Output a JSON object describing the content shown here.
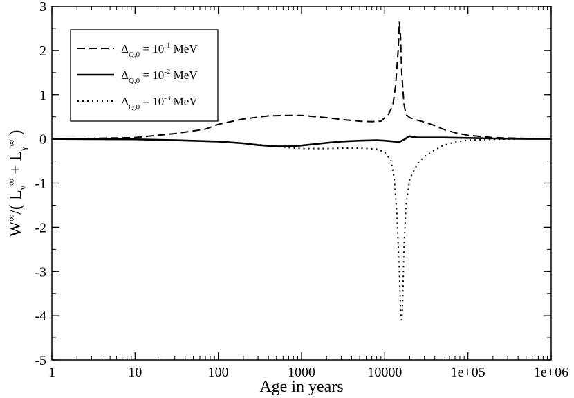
{
  "chart_data": {
    "type": "line",
    "xscale": "log",
    "xlim": [
      1,
      1000000
    ],
    "ylim": [
      -5,
      3
    ],
    "xlabel": "Age in years",
    "ylabel": "W^∞/( L_ν^∞ + L_γ^∞ )",
    "xticks": [
      {
        "value": 1,
        "label": "1"
      },
      {
        "value": 10,
        "label": "10"
      },
      {
        "value": 100,
        "label": "100"
      },
      {
        "value": 1000,
        "label": "1000"
      },
      {
        "value": 10000,
        "label": "10000"
      },
      {
        "value": 100000,
        "label": "1e+05"
      },
      {
        "value": 1000000,
        "label": "1e+06"
      }
    ],
    "yticks": [
      {
        "value": 3,
        "label": "3"
      },
      {
        "value": 2,
        "label": "2"
      },
      {
        "value": 1,
        "label": "1"
      },
      {
        "value": 0,
        "label": "0"
      },
      {
        "value": -1,
        "label": "-1"
      },
      {
        "value": -2,
        "label": "-2"
      },
      {
        "value": -3,
        "label": "-3"
      },
      {
        "value": -4,
        "label": "-4"
      },
      {
        "value": -5,
        "label": "-5"
      }
    ],
    "grid": false,
    "legend_position": "top-left",
    "series": [
      {
        "name": "Δ_Q,0 = 10^-1 MeV",
        "legend": {
          "base": "Δ",
          "sub": "Q,0",
          "eq": " = 10",
          "exp": "-1",
          "unit": " MeV"
        },
        "style": "dashed",
        "color": "#000000",
        "x": [
          1,
          3,
          10,
          30,
          70,
          100,
          200,
          400,
          700,
          1000,
          1500,
          2000,
          3000,
          5000,
          7000,
          9000,
          11000,
          12500,
          13500,
          14500,
          15000,
          15500,
          16000,
          17000,
          18000,
          20000,
          25000,
          30000,
          40000,
          50000,
          70000,
          100000,
          150000,
          200000,
          300000,
          500000,
          1000000
        ],
        "y": [
          0.0,
          0.01,
          0.03,
          0.12,
          0.22,
          0.33,
          0.45,
          0.52,
          0.53,
          0.53,
          0.5,
          0.48,
          0.44,
          0.4,
          0.39,
          0.4,
          0.55,
          0.75,
          1.2,
          2.0,
          2.65,
          2.3,
          1.5,
          0.8,
          0.55,
          0.48,
          0.42,
          0.38,
          0.3,
          0.22,
          0.14,
          0.08,
          0.05,
          0.03,
          0.02,
          0.01,
          0.0
        ]
      },
      {
        "name": "Δ_Q,0 = 10^-2 MeV",
        "legend": {
          "base": "Δ",
          "sub": "Q,0",
          "eq": " = 10",
          "exp": "-2",
          "unit": " MeV"
        },
        "style": "solid",
        "color": "#000000",
        "x": [
          1,
          10,
          30,
          100,
          200,
          300,
          500,
          700,
          1000,
          2000,
          3000,
          5000,
          8000,
          10000,
          13000,
          15000,
          17000,
          19000,
          20000,
          22000,
          25000,
          30000,
          50000,
          100000,
          200000,
          500000,
          1000000
        ],
        "y": [
          0.0,
          -0.01,
          -0.03,
          -0.06,
          -0.1,
          -0.14,
          -0.17,
          -0.17,
          -0.15,
          -0.09,
          -0.06,
          -0.04,
          -0.03,
          -0.04,
          -0.06,
          -0.07,
          -0.02,
          0.04,
          0.06,
          0.04,
          0.03,
          0.03,
          0.03,
          0.02,
          0.01,
          0.0,
          0.0
        ]
      },
      {
        "name": "Δ_Q,0 = 10^-3 MeV",
        "legend": {
          "base": "Δ",
          "sub": "Q,0",
          "eq": " = 10",
          "exp": "-3",
          "unit": " MeV"
        },
        "style": "dotted",
        "color": "#000000",
        "x": [
          1,
          10,
          100,
          200,
          400,
          700,
          1000,
          2000,
          3000,
          5000,
          8000,
          10000,
          12000,
          13000,
          14000,
          15000,
          15500,
          16000,
          16500,
          17000,
          18000,
          20000,
          25000,
          30000,
          40000,
          50000,
          70000,
          100000,
          200000,
          500000,
          1000000
        ],
        "y": [
          0.0,
          -0.01,
          -0.06,
          -0.1,
          -0.15,
          -0.2,
          -0.22,
          -0.22,
          -0.21,
          -0.21,
          -0.23,
          -0.3,
          -0.5,
          -0.9,
          -1.7,
          -3.0,
          -3.9,
          -4.15,
          -3.6,
          -2.5,
          -1.5,
          -0.9,
          -0.55,
          -0.4,
          -0.25,
          -0.15,
          -0.07,
          -0.03,
          -0.01,
          0.0,
          0.0
        ]
      }
    ]
  }
}
